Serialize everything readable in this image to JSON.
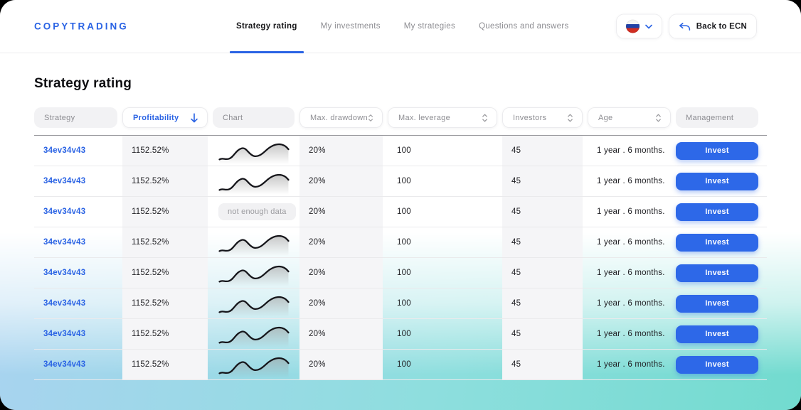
{
  "brand": {
    "logo": "COPYTRADING"
  },
  "nav": {
    "tabs": [
      {
        "label": "Strategy rating",
        "active": true
      },
      {
        "label": "My investments",
        "active": false
      },
      {
        "label": "My strategies",
        "active": false
      },
      {
        "label": "Questions and answers",
        "active": false
      }
    ]
  },
  "actions": {
    "language": {
      "flag": "russia"
    },
    "back": {
      "label": "Back to ECN"
    }
  },
  "page": {
    "title": "Strategy rating"
  },
  "table": {
    "columns": [
      {
        "label": "Strategy",
        "sortable": false
      },
      {
        "label": "Profitability",
        "sortable": true,
        "sorted": "desc"
      },
      {
        "label": "Chart",
        "sortable": false
      },
      {
        "label": "Max. drawdown",
        "sortable": true
      },
      {
        "label": "Max. leverage",
        "sortable": true
      },
      {
        "label": "Investors",
        "sortable": true
      },
      {
        "label": "Age",
        "sortable": true
      },
      {
        "label": "Management",
        "sortable": false
      }
    ],
    "no_chart_label": "not enough data",
    "invest_label": "Invest",
    "rows": [
      {
        "strategy": "34ev34v43",
        "profitability": "1152.52%",
        "has_chart": true,
        "max_drawdown": "20%",
        "max_leverage": "100",
        "investors": "45",
        "age": "1 year . 6 months."
      },
      {
        "strategy": "34ev34v43",
        "profitability": "1152.52%",
        "has_chart": true,
        "max_drawdown": "20%",
        "max_leverage": "100",
        "investors": "45",
        "age": "1 year . 6 months."
      },
      {
        "strategy": "34ev34v43",
        "profitability": "1152.52%",
        "has_chart": false,
        "max_drawdown": "20%",
        "max_leverage": "100",
        "investors": "45",
        "age": "1 year . 6 months."
      },
      {
        "strategy": "34ev34v43",
        "profitability": "1152.52%",
        "has_chart": true,
        "max_drawdown": "20%",
        "max_leverage": "100",
        "investors": "45",
        "age": "1 year . 6 months."
      },
      {
        "strategy": "34ev34v43",
        "profitability": "1152.52%",
        "has_chart": true,
        "max_drawdown": "20%",
        "max_leverage": "100",
        "investors": "45",
        "age": "1 year . 6 months."
      },
      {
        "strategy": "34ev34v43",
        "profitability": "1152.52%",
        "has_chart": true,
        "max_drawdown": "20%",
        "max_leverage": "100",
        "investors": "45",
        "age": "1 year . 6 months."
      },
      {
        "strategy": "34ev34v43",
        "profitability": "1152.52%",
        "has_chart": true,
        "max_drawdown": "20%",
        "max_leverage": "100",
        "investors": "45",
        "age": "1 year . 6 months."
      },
      {
        "strategy": "34ev34v43",
        "profitability": "1152.52%",
        "has_chart": true,
        "max_drawdown": "20%",
        "max_leverage": "100",
        "investors": "45",
        "age": "1 year . 6 months."
      }
    ]
  },
  "colors": {
    "accent": "#2a63e4",
    "invest_button": "#2d68e8",
    "stripe": "#f5f5f7",
    "gradient_left": "#a9d3f0",
    "gradient_right": "#72dbcf"
  }
}
